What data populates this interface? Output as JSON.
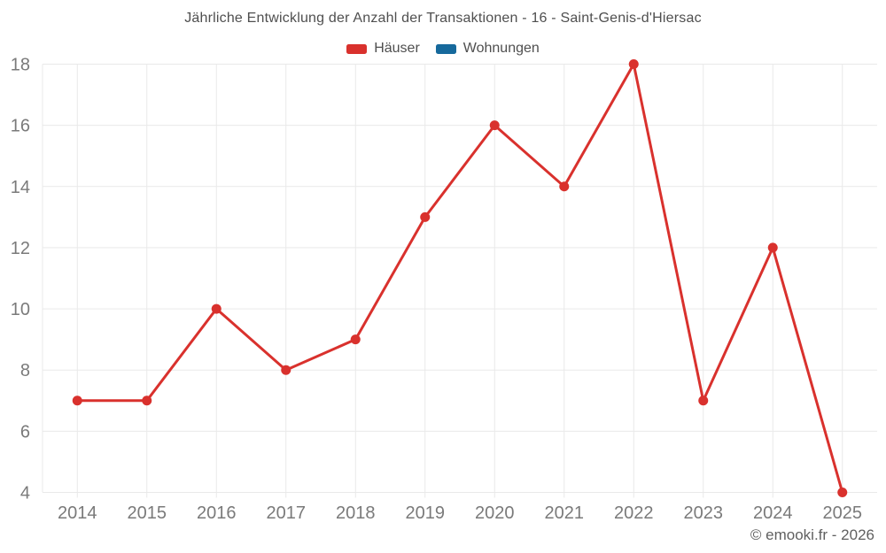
{
  "title": "Jährliche Entwicklung der Anzahl der Transaktionen - 16 - Saint-Genis-d'Hiersac",
  "footer": {
    "copyright": "© emooki.fr - 2026"
  },
  "chart_data": {
    "type": "line",
    "title": "Jährliche Entwicklung der Anzahl der Transaktionen - 16 - Saint-Genis-d'Hiersac",
    "categories": [
      "2014",
      "2015",
      "2016",
      "2017",
      "2018",
      "2019",
      "2020",
      "2021",
      "2022",
      "2023",
      "2024",
      "2025"
    ],
    "series": [
      {
        "name": "Häuser",
        "color": "#d9312d",
        "values": [
          7,
          7,
          10,
          8,
          9,
          13,
          16,
          14,
          18,
          7,
          12,
          4
        ]
      },
      {
        "name": "Wohnungen",
        "color": "#16699c",
        "values": []
      }
    ],
    "xlabel": "",
    "ylabel": "",
    "ylim": [
      4,
      18
    ],
    "ytick_step": 2,
    "grid": true,
    "legend_position": "top",
    "marker": "circle"
  },
  "style": {
    "grid_color": "#e9e9e9",
    "axis_label_color": "#7a7a7a",
    "title_color": "#4f4f4f",
    "legend_text_color": "#4f4f4f",
    "copyright_color": "#606060",
    "background": "#ffffff"
  }
}
